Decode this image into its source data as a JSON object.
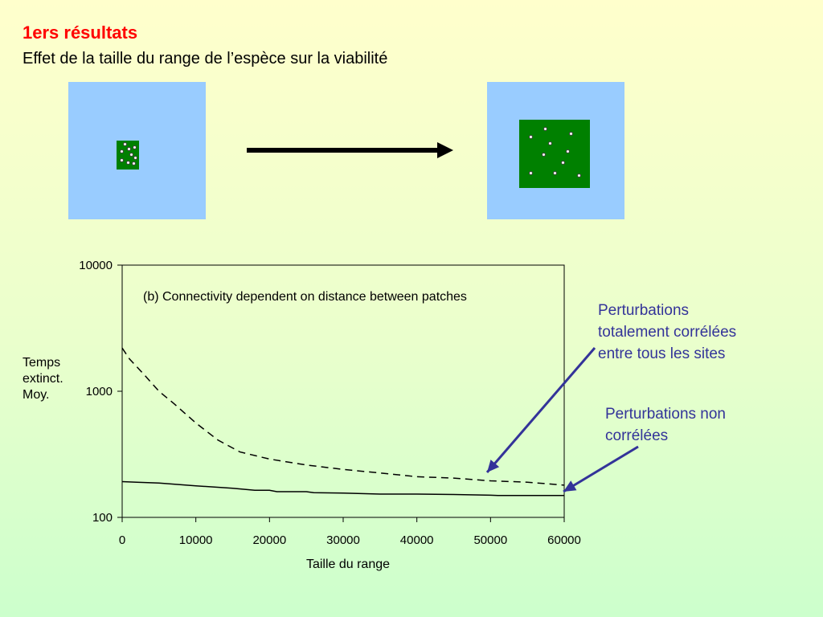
{
  "slide": {
    "title": "1ers résultats",
    "subtitle": "Effet de la taille du range de l’espèce sur la viabilité"
  },
  "illustration": {
    "colors": {
      "background": "#99ccff",
      "patch": "#008000",
      "arrow": "#000000"
    }
  },
  "chart_data": {
    "type": "line",
    "title": "(b) Connectivity dependent on distance between patches",
    "xlabel": "Taille du range",
    "ylabel": [
      "Temps",
      "extinct.",
      "Moy."
    ],
    "xlim": [
      0,
      60000
    ],
    "ylim": [
      100,
      10000
    ],
    "yscale": "log",
    "xticks": [
      0,
      10000,
      20000,
      30000,
      40000,
      50000,
      60000
    ],
    "xtick_labels": [
      "0",
      "10000",
      "20000",
      "30000",
      "40000",
      "50000",
      "60000"
    ],
    "yticks": [
      100,
      1000,
      10000
    ],
    "ytick_labels": [
      "100",
      "1000",
      "10000"
    ],
    "grid": false,
    "legend": "none",
    "series": [
      {
        "style": "dashed",
        "x": [
          0,
          1000,
          3000,
          5000,
          7000,
          10000,
          13000,
          16000,
          20000,
          25000,
          30000,
          35000,
          40000,
          45000,
          50000,
          55000,
          60000
        ],
        "y": [
          2200,
          1800,
          1350,
          1000,
          800,
          560,
          410,
          330,
          290,
          260,
          240,
          225,
          210,
          205,
          195,
          190,
          180
        ]
      },
      {
        "style": "solid",
        "x": [
          0,
          2000,
          5000,
          10000,
          15000,
          18000,
          20000,
          21000,
          25000,
          26000,
          30000,
          35000,
          40000,
          45000,
          50000,
          51000,
          60000
        ],
        "y": [
          192,
          190,
          187,
          178,
          170,
          164,
          164,
          160,
          160,
          157,
          156,
          153,
          153,
          152,
          150,
          149,
          149
        ]
      }
    ],
    "annotations": [
      {
        "text": [
          "Perturbations",
          "totalement corrélées",
          "entre tous les sites"
        ],
        "points_to": "dashed"
      },
      {
        "text": [
          "Perturbations non",
          "corrélées"
        ],
        "points_to": "solid"
      }
    ],
    "colors": {
      "axis": "#000000",
      "line": "#000000",
      "annotation": "#333399"
    }
  }
}
